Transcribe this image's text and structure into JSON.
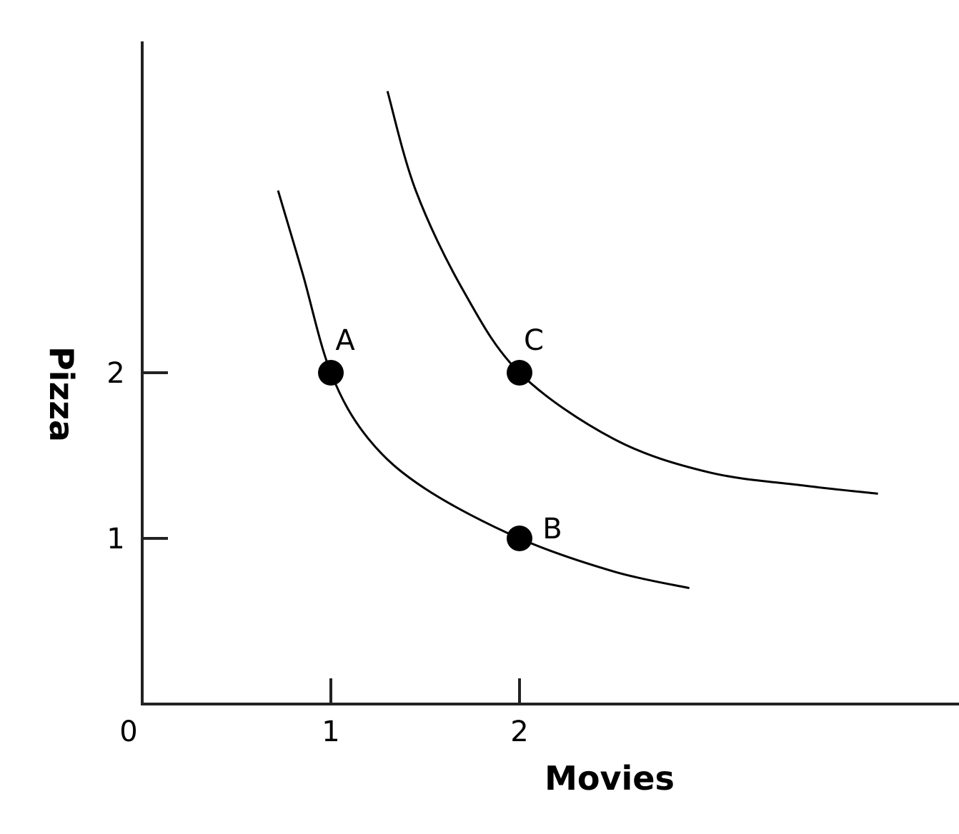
{
  "chart_data": {
    "type": "line",
    "xlabel": "Movies",
    "ylabel": "Pizza",
    "origin_label": "0",
    "x_ticks": [
      1,
      2
    ],
    "y_ticks": [
      1,
      2
    ],
    "grid": false,
    "series": [
      {
        "x": [
          0.72,
          0.85,
          1,
          1.2,
          1.5,
          2,
          2.5,
          2.9
        ],
        "y": [
          3.1,
          2.6,
          2,
          1.6,
          1.3,
          1,
          0.8,
          0.7
        ]
      },
      {
        "x": [
          1.3,
          1.45,
          1.7,
          2,
          2.5,
          3,
          3.5,
          3.9
        ],
        "y": [
          3.7,
          3.1,
          2.5,
          2,
          1.6,
          1.4,
          1.32,
          1.27
        ]
      }
    ],
    "points": [
      {
        "label": "A",
        "x": 1,
        "y": 2
      },
      {
        "label": "B",
        "x": 2,
        "y": 1
      },
      {
        "label": "C",
        "x": 2,
        "y": 2
      }
    ]
  }
}
